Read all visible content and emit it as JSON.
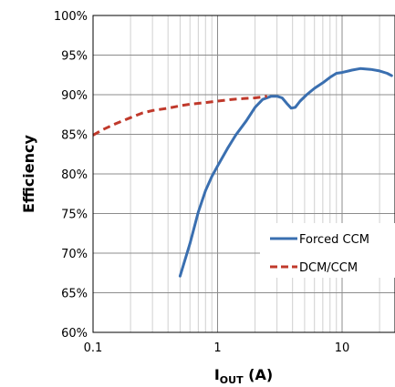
{
  "chart_data": {
    "type": "line",
    "xscale": "log",
    "xlim": [
      0.1,
      25
    ],
    "ylim": [
      60,
      100
    ],
    "x_ticks": [
      {
        "value": 0.1,
        "label": "0.1"
      },
      {
        "value": 1,
        "label": "1"
      },
      {
        "value": 10,
        "label": "10"
      }
    ],
    "y_ticks": [
      {
        "value": 60,
        "label": "60%"
      },
      {
        "value": 65,
        "label": "65%"
      },
      {
        "value": 70,
        "label": "70%"
      },
      {
        "value": 75,
        "label": "75%"
      },
      {
        "value": 80,
        "label": "80%"
      },
      {
        "value": 85,
        "label": "85%"
      },
      {
        "value": 90,
        "label": "90%"
      },
      {
        "value": 95,
        "label": "95%"
      },
      {
        "value": 100,
        "label": "100%"
      }
    ],
    "ylabel": "Efficiency",
    "xlabel_main": "I",
    "xlabel_sub": "OUT",
    "xlabel_tail": " (A)",
    "grid": true,
    "legend_position": "bottom-right",
    "series": [
      {
        "name": "Forced CCM",
        "color": "#3a6fb0",
        "style": "solid",
        "points": [
          [
            0.5,
            67.1
          ],
          [
            0.6,
            71.2
          ],
          [
            0.7,
            75.2
          ],
          [
            0.8,
            77.9
          ],
          [
            0.9,
            79.7
          ],
          [
            1.0,
            81.0
          ],
          [
            1.2,
            83.2
          ],
          [
            1.4,
            84.9
          ],
          [
            1.7,
            86.7
          ],
          [
            2.0,
            88.4
          ],
          [
            2.3,
            89.4
          ],
          [
            2.7,
            89.8
          ],
          [
            3.0,
            89.8
          ],
          [
            3.3,
            89.6
          ],
          [
            3.6,
            88.9
          ],
          [
            3.9,
            88.3
          ],
          [
            4.2,
            88.4
          ],
          [
            4.6,
            89.2
          ],
          [
            5.2,
            90.0
          ],
          [
            6.0,
            90.8
          ],
          [
            7.0,
            91.5
          ],
          [
            8.0,
            92.2
          ],
          [
            9.0,
            92.7
          ],
          [
            10.0,
            92.8
          ],
          [
            12.0,
            93.1
          ],
          [
            14.0,
            93.3
          ],
          [
            17.0,
            93.2
          ],
          [
            20.0,
            93.0
          ],
          [
            23.0,
            92.7
          ],
          [
            25.0,
            92.4
          ]
        ]
      },
      {
        "name": "DCM/CCM",
        "color": "#c0392b",
        "style": "dashed",
        "points": [
          [
            0.1,
            84.9
          ],
          [
            0.12,
            85.6
          ],
          [
            0.15,
            86.3
          ],
          [
            0.2,
            87.1
          ],
          [
            0.25,
            87.7
          ],
          [
            0.3,
            88.0
          ],
          [
            0.4,
            88.3
          ],
          [
            0.5,
            88.6
          ],
          [
            0.6,
            88.8
          ],
          [
            0.8,
            89.0
          ],
          [
            1.0,
            89.2
          ],
          [
            1.3,
            89.4
          ],
          [
            1.6,
            89.5
          ],
          [
            2.0,
            89.6
          ],
          [
            2.5,
            89.8
          ]
        ]
      }
    ]
  }
}
